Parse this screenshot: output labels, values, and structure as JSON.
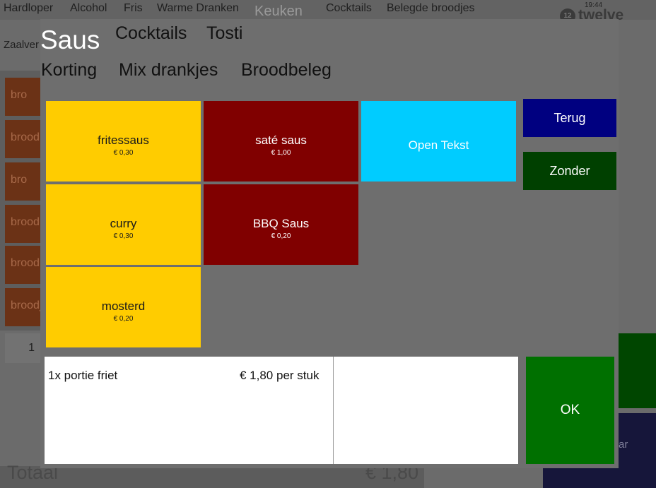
{
  "background": {
    "categories": [
      "Hardloper",
      "Alcohol",
      "Fris",
      "Warme Dranken",
      "Keuken",
      "Cocktails",
      "Belegde broodjes"
    ],
    "time": "19:44",
    "logo": {
      "mark": "12",
      "word": "twelve"
    },
    "area": "Zaalver",
    "products": [
      "bro",
      "brood",
      "bro",
      "brood",
      "brood",
      "broodj"
    ],
    "quantity": "1",
    "total_label": "Totaal",
    "total_value": "€ 1,80",
    "side_button_partial": "ar"
  },
  "modal": {
    "tabs": [
      {
        "label": "Saus",
        "active": true
      },
      {
        "label": "Cocktails",
        "active": false
      },
      {
        "label": "Tosti",
        "active": false
      },
      {
        "label": "Korting",
        "active": false
      },
      {
        "label": "Mix drankjes",
        "active": false
      },
      {
        "label": "Broodbeleg",
        "active": false
      }
    ],
    "items": [
      {
        "name": "fritessaus",
        "price": "€ 0,30",
        "color": "#ffcc00"
      },
      {
        "name": "saté saus",
        "price": "€ 1,00",
        "color": "#800000"
      },
      {
        "name": "Open Tekst",
        "price": "",
        "color": "#00ccff"
      },
      {
        "name": "curry",
        "price": "€ 0,30",
        "color": "#ffcc00"
      },
      {
        "name": "BBQ Saus",
        "price": "€ 0,20",
        "color": "#800000"
      },
      {
        "name": "mosterd",
        "price": "€ 0,20",
        "color": "#ffcc00"
      }
    ],
    "buttons": {
      "back": "Terug",
      "without": "Zonder",
      "ok": "OK"
    },
    "order": {
      "line": "1x portie friet",
      "unit_price": "€ 1,80 per stuk"
    }
  },
  "colors": {
    "sauce_yellow": "#ffcc00",
    "sauce_red": "#800000",
    "open_text_cyan": "#00ccff",
    "back_navy": "#000080",
    "without_green": "#004000",
    "ok_green": "#007000"
  }
}
